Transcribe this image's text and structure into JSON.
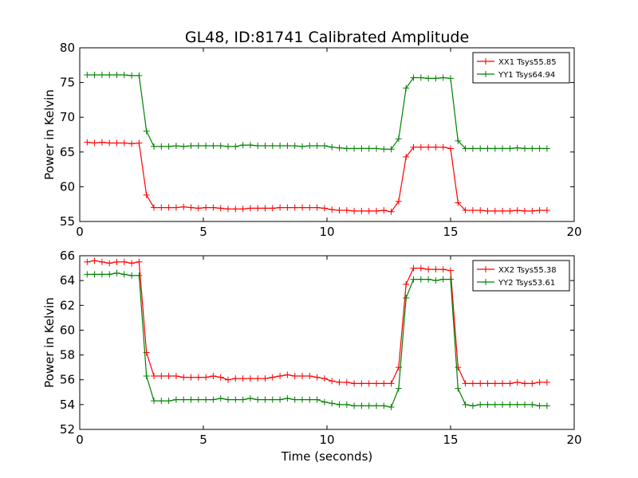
{
  "title": "GL48, ID:81741 Calibrated Amplitude",
  "chart_data": [
    {
      "type": "line",
      "ylabel": "Power in Kelvin",
      "xlabel": "",
      "xlim": [
        0,
        20
      ],
      "ylim": [
        55,
        80
      ],
      "xticks": [
        "0",
        "5",
        "10",
        "15",
        "20"
      ],
      "yticks": [
        "55",
        "60",
        "65",
        "70",
        "75",
        "80"
      ],
      "legend_position": "top-right",
      "x": [
        0.3,
        0.6,
        0.9,
        1.2,
        1.5,
        1.8,
        2.1,
        2.4,
        2.7,
        3.0,
        3.3,
        3.6,
        3.9,
        4.2,
        4.5,
        4.8,
        5.1,
        5.4,
        5.7,
        6.0,
        6.3,
        6.6,
        6.9,
        7.2,
        7.5,
        7.8,
        8.1,
        8.4,
        8.7,
        9.0,
        9.3,
        9.6,
        9.9,
        10.2,
        10.5,
        10.8,
        11.1,
        11.4,
        11.7,
        12.0,
        12.3,
        12.6,
        12.9,
        13.2,
        13.5,
        13.8,
        14.1,
        14.4,
        14.7,
        15.0,
        15.3,
        15.6,
        15.9,
        16.2,
        16.5,
        16.8,
        17.1,
        17.4,
        17.7,
        18.0,
        18.3,
        18.6,
        18.9
      ],
      "series": [
        {
          "name": "XX1 Tsys55.85",
          "color": "#ff0000",
          "values": [
            66.4,
            66.3,
            66.4,
            66.3,
            66.3,
            66.3,
            66.2,
            66.3,
            58.8,
            57.0,
            57.0,
            57.0,
            57.0,
            57.1,
            57.0,
            56.9,
            57.0,
            57.0,
            56.9,
            56.8,
            56.8,
            56.8,
            56.9,
            56.9,
            56.9,
            56.9,
            57.0,
            57.0,
            57.0,
            57.0,
            57.0,
            57.0,
            56.9,
            56.7,
            56.6,
            56.6,
            56.5,
            56.5,
            56.5,
            56.5,
            56.6,
            56.4,
            57.9,
            64.3,
            65.7,
            65.7,
            65.7,
            65.7,
            65.7,
            65.5,
            57.7,
            56.6,
            56.6,
            56.6,
            56.5,
            56.5,
            56.5,
            56.5,
            56.6,
            56.5,
            56.5,
            56.6,
            56.6
          ]
        },
        {
          "name": "YY1 Tsys64.94",
          "color": "#008000",
          "values": [
            76.1,
            76.1,
            76.1,
            76.1,
            76.1,
            76.1,
            76.0,
            76.0,
            68.0,
            65.8,
            65.8,
            65.8,
            65.9,
            65.8,
            65.9,
            65.9,
            65.9,
            65.9,
            65.9,
            65.8,
            65.8,
            66.0,
            66.0,
            65.9,
            65.9,
            65.9,
            65.9,
            65.9,
            65.9,
            65.8,
            65.9,
            65.9,
            65.9,
            65.7,
            65.6,
            65.5,
            65.5,
            65.5,
            65.5,
            65.5,
            65.4,
            65.4,
            66.9,
            74.2,
            75.7,
            75.7,
            75.6,
            75.6,
            75.7,
            75.6,
            66.6,
            65.5,
            65.5,
            65.5,
            65.5,
            65.5,
            65.5,
            65.5,
            65.6,
            65.5,
            65.5,
            65.5,
            65.5
          ]
        }
      ]
    },
    {
      "type": "line",
      "ylabel": "Power in Kelvin",
      "xlabel": "Time (seconds)",
      "xlim": [
        0,
        20
      ],
      "ylim": [
        52,
        66
      ],
      "xticks": [
        "0",
        "5",
        "10",
        "15",
        "20"
      ],
      "yticks": [
        "52",
        "54",
        "56",
        "58",
        "60",
        "62",
        "64",
        "66"
      ],
      "legend_position": "top-right",
      "x": [
        0.3,
        0.6,
        0.9,
        1.2,
        1.5,
        1.8,
        2.1,
        2.4,
        2.7,
        3.0,
        3.3,
        3.6,
        3.9,
        4.2,
        4.5,
        4.8,
        5.1,
        5.4,
        5.7,
        6.0,
        6.3,
        6.6,
        6.9,
        7.2,
        7.5,
        7.8,
        8.1,
        8.4,
        8.7,
        9.0,
        9.3,
        9.6,
        9.9,
        10.2,
        10.5,
        10.8,
        11.1,
        11.4,
        11.7,
        12.0,
        12.3,
        12.6,
        12.9,
        13.2,
        13.5,
        13.8,
        14.1,
        14.4,
        14.7,
        15.0,
        15.3,
        15.6,
        15.9,
        16.2,
        16.5,
        16.8,
        17.1,
        17.4,
        17.7,
        18.0,
        18.3,
        18.6,
        18.9
      ],
      "series": [
        {
          "name": "XX2 Tsys55.38",
          "color": "#ff0000",
          "values": [
            65.5,
            65.6,
            65.5,
            65.4,
            65.5,
            65.5,
            65.4,
            65.5,
            58.2,
            56.3,
            56.3,
            56.3,
            56.3,
            56.2,
            56.2,
            56.2,
            56.2,
            56.3,
            56.2,
            56.0,
            56.1,
            56.1,
            56.1,
            56.1,
            56.1,
            56.2,
            56.3,
            56.4,
            56.3,
            56.3,
            56.3,
            56.2,
            56.1,
            55.9,
            55.8,
            55.8,
            55.7,
            55.7,
            55.7,
            55.7,
            55.7,
            55.7,
            57.0,
            63.7,
            65.0,
            65.0,
            64.9,
            64.9,
            64.9,
            64.8,
            57.0,
            55.7,
            55.7,
            55.7,
            55.7,
            55.7,
            55.7,
            55.7,
            55.8,
            55.7,
            55.7,
            55.8,
            55.8
          ]
        },
        {
          "name": "YY2 Tsys53.61",
          "color": "#008000",
          "values": [
            64.5,
            64.5,
            64.5,
            64.5,
            64.6,
            64.5,
            64.4,
            64.4,
            56.3,
            54.3,
            54.3,
            54.3,
            54.4,
            54.4,
            54.4,
            54.4,
            54.4,
            54.4,
            54.5,
            54.4,
            54.4,
            54.4,
            54.5,
            54.4,
            54.4,
            54.4,
            54.4,
            54.5,
            54.4,
            54.4,
            54.4,
            54.4,
            54.2,
            54.1,
            54.0,
            54.0,
            53.9,
            53.9,
            53.9,
            53.9,
            53.9,
            53.8,
            55.3,
            62.6,
            64.1,
            64.1,
            64.1,
            64.0,
            64.1,
            64.1,
            55.3,
            54.0,
            53.9,
            54.0,
            54.0,
            54.0,
            54.0,
            54.0,
            54.0,
            54.0,
            54.0,
            53.9,
            53.9
          ]
        }
      ]
    }
  ]
}
